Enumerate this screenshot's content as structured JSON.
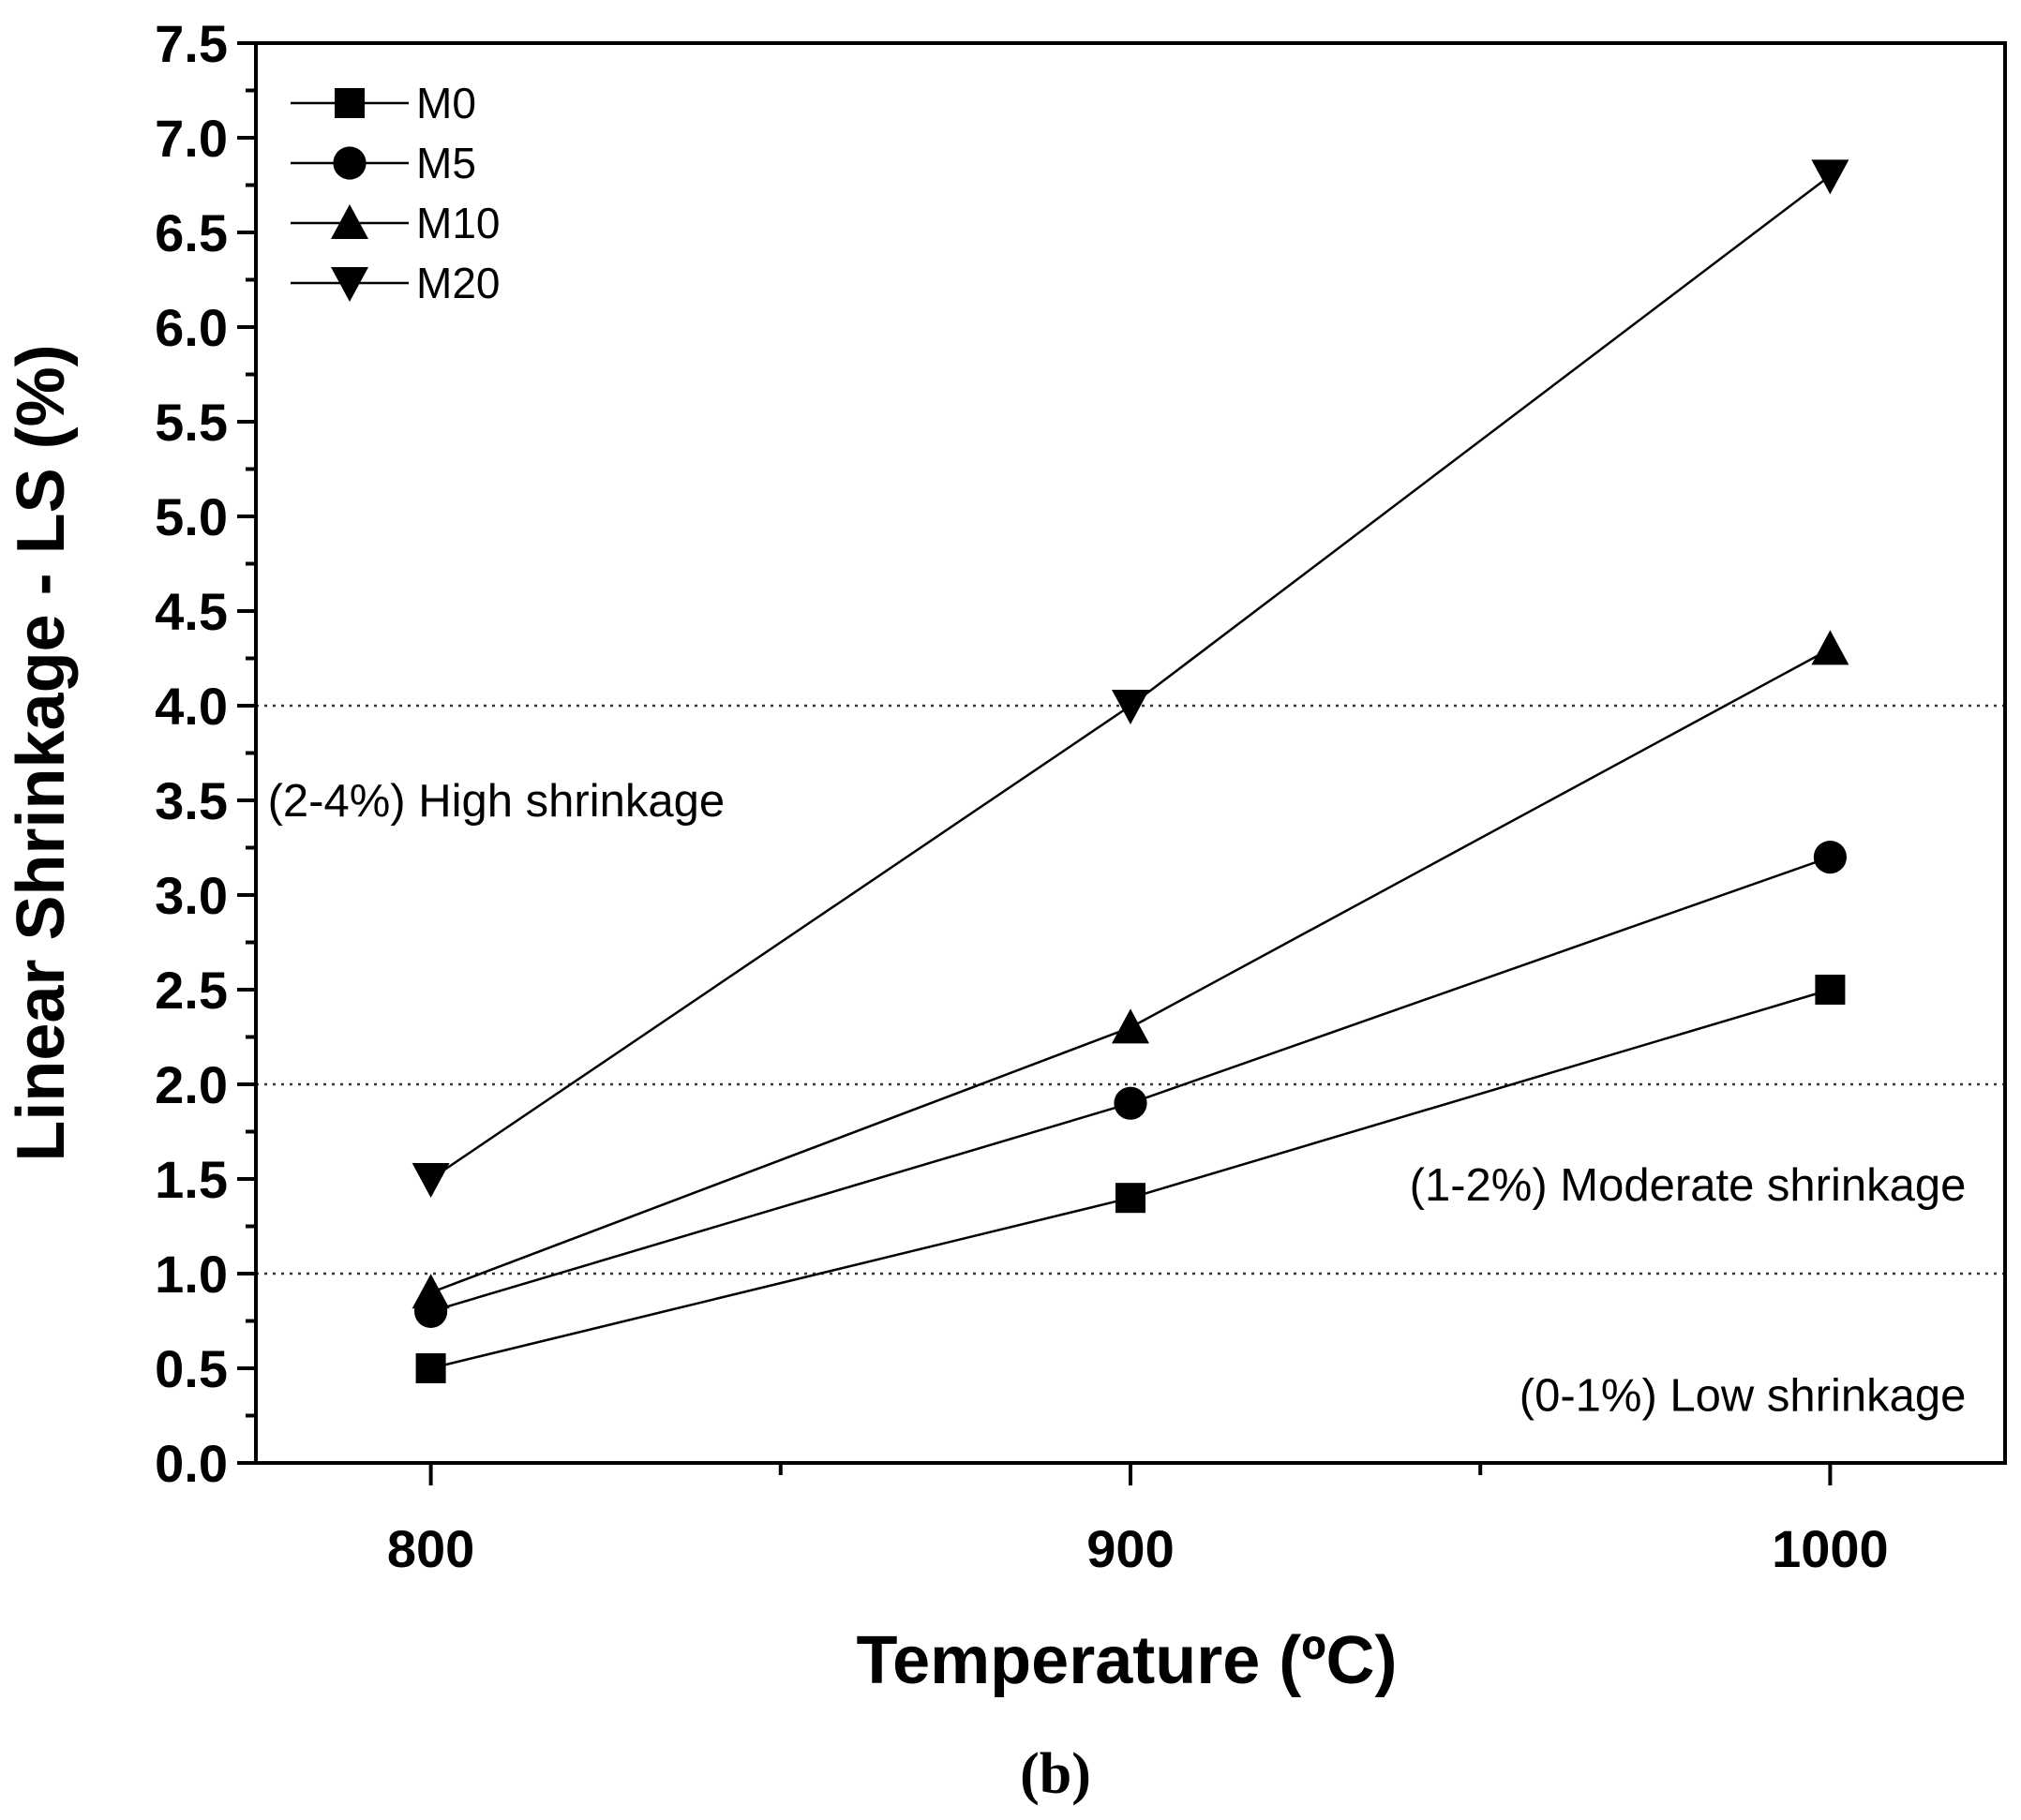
{
  "chart_data": {
    "type": "line",
    "title": "",
    "xlabel": "Temperature (ºC)",
    "ylabel": "Linear Shrinkage - LS (%)",
    "panel_label": "(b)",
    "x": [
      800,
      900,
      1000
    ],
    "x_tick_labels": [
      "800",
      "900",
      "1000"
    ],
    "xlim": [
      775,
      1025
    ],
    "ylim": [
      0,
      7.5
    ],
    "y_ticks": [
      0.0,
      0.5,
      1.0,
      1.5,
      2.0,
      2.5,
      3.0,
      3.5,
      4.0,
      4.5,
      5.0,
      5.5,
      6.0,
      6.5,
      7.0,
      7.5
    ],
    "y_tick_labels": [
      "0.0",
      "0.5",
      "1.0",
      "1.5",
      "2.0",
      "2.5",
      "3.0",
      "3.5",
      "4.0",
      "4.5",
      "5.0",
      "5.5",
      "6.0",
      "6.5",
      "7.0",
      "7.5"
    ],
    "grid": false,
    "legend_position": "top-left",
    "series": [
      {
        "name": "M0",
        "marker": "square",
        "values": [
          0.5,
          1.4,
          2.5
        ]
      },
      {
        "name": "M5",
        "marker": "circle",
        "values": [
          0.8,
          1.9,
          3.2
        ]
      },
      {
        "name": "M10",
        "marker": "triangle-up",
        "values": [
          0.9,
          2.3,
          4.3
        ]
      },
      {
        "name": "M20",
        "marker": "triangle-down",
        "values": [
          1.5,
          4.0,
          6.8
        ]
      }
    ],
    "reference_lines": [
      {
        "y": 4.0,
        "style": "dotted"
      },
      {
        "y": 2.0,
        "style": "dotted"
      },
      {
        "y": 1.0,
        "style": "dotted"
      }
    ],
    "annotations": [
      {
        "text": "(2-4%) High shrinkage",
        "x": 800,
        "y": 3.5,
        "anchor": "left"
      },
      {
        "text": "(1-2%) Moderate shrinkage",
        "x": 1000,
        "y": 1.47,
        "anchor": "right"
      },
      {
        "text": "(0-1%) Low shrinkage",
        "x": 1000,
        "y": 0.36,
        "anchor": "right"
      }
    ],
    "colors": {
      "line": "#000000",
      "marker": "#000000",
      "reference": "#333333"
    }
  }
}
